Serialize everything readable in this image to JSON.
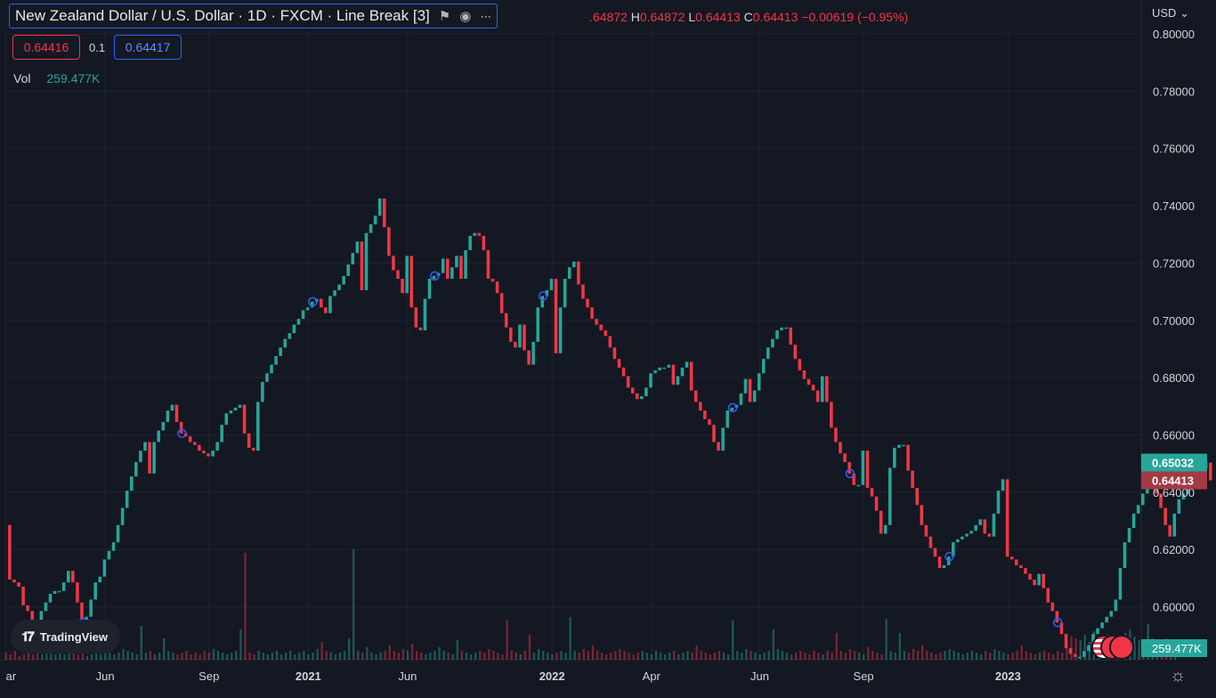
{
  "header": {
    "title": "New Zealand Dollar / U.S. Dollar · 1D · FXCM · Line Break [3]",
    "flag_icon": "flag-icon",
    "eye_icon": "eye-icon",
    "more_icon": "more-icon",
    "ohlc": {
      "o_value": ".64872",
      "h_key": "H",
      "h_value": "0.64872",
      "l_key": "L",
      "l_value": "0.64413",
      "c_key": "C",
      "c_value": "0.64413",
      "change": "−0.00619 (−0.95%)"
    },
    "sell_price": "0.64416",
    "spread": "0.1",
    "buy_price": "0.64417",
    "vol_label": "Vol",
    "vol_value": "259.477K",
    "currency": "USD"
  },
  "logo_text": "TradingView",
  "settings_icon": "gear-icon",
  "colors": {
    "up": "#26a69a",
    "down": "#f23645",
    "background": "#141823",
    "grid": "#1f2430"
  },
  "chart_data": {
    "type": "line_break",
    "y_ticks": [
      "0.80000",
      "0.78000",
      "0.76000",
      "0.74000",
      "0.72000",
      "0.70000",
      "0.68000",
      "0.66000",
      "0.64000",
      "0.62000",
      "0.60000"
    ],
    "ylim": [
      0.5815,
      0.8025
    ],
    "x_ticks": [
      {
        "label": "ar",
        "x": 0
      },
      {
        "label": "Jun",
        "x": 22
      },
      {
        "label": "Sep",
        "x": 45
      },
      {
        "label": "2021",
        "x": 67
      },
      {
        "label": "Jun",
        "x": 89
      },
      {
        "label": "2022",
        "x": 121
      },
      {
        "label": "Apr",
        "x": 143
      },
      {
        "label": "Jun",
        "x": 167
      },
      {
        "label": "Sep",
        "x": 190
      },
      {
        "label": "2023",
        "x": 222
      }
    ],
    "x_range": [
      0,
      252
    ],
    "price_labels": [
      {
        "value": "0.65032",
        "color": "#26a69a"
      },
      {
        "value": "0.64413",
        "color": "#a33a45"
      }
    ],
    "volume_label": "259.477K",
    "last_price": 0.64413,
    "prev_price": 0.65032,
    "closes": [
      0.6285,
      0.6095,
      0.6085,
      0.607,
      0.6005,
      0.5985,
      0.5945,
      0.5935,
      0.5985,
      0.6015,
      0.6045,
      0.6055,
      0.6055,
      0.6085,
      0.6125,
      0.6085,
      0.6015,
      0.5945,
      0.5965,
      0.6025,
      0.6085,
      0.6105,
      0.6165,
      0.6195,
      0.6225,
      0.6285,
      0.6345,
      0.6405,
      0.6455,
      0.6505,
      0.6545,
      0.6575,
      0.6465,
      0.6575,
      0.6615,
      0.6645,
      0.6685,
      0.6705,
      0.6645,
      0.6605,
      0.6595,
      0.6575,
      0.6565,
      0.6545,
      0.6535,
      0.6525,
      0.6545,
      0.6575,
      0.6635,
      0.6675,
      0.6685,
      0.6695,
      0.6705,
      0.6605,
      0.6555,
      0.6545,
      0.6715,
      0.6785,
      0.6815,
      0.6845,
      0.6875,
      0.6905,
      0.6935,
      0.6955,
      0.6985,
      0.7005,
      0.7035,
      0.7045,
      0.7065,
      0.7075,
      0.7045,
      0.7025,
      0.7085,
      0.7105,
      0.7125,
      0.7155,
      0.7195,
      0.7235,
      0.7275,
      0.7105,
      0.7305,
      0.7335,
      0.7365,
      0.7425,
      0.7325,
      0.7225,
      0.7175,
      0.7145,
      0.7095,
      0.7225,
      0.7045,
      0.6975,
      0.6965,
      0.7075,
      0.7145,
      0.7155,
      0.7165,
      0.7215,
      0.7145,
      0.7185,
      0.7225,
      0.7145,
      0.7245,
      0.7295,
      0.7305,
      0.7295,
      0.7245,
      0.7145,
      0.7135,
      0.7095,
      0.7025,
      0.6975,
      0.6925,
      0.6905,
      0.6985,
      0.6895,
      0.6845,
      0.6925,
      0.7045,
      0.7085,
      0.7105,
      0.7145,
      0.6885,
      0.7045,
      0.7145,
      0.7185,
      0.7205,
      0.7125,
      0.7075,
      0.7045,
      0.7005,
      0.6985,
      0.6965,
      0.6945,
      0.6905,
      0.6865,
      0.6835,
      0.6805,
      0.6765,
      0.6745,
      0.6725,
      0.6735,
      0.6765,
      0.6815,
      0.6825,
      0.6835,
      0.6835,
      0.6845,
      0.6775,
      0.6805,
      0.6835,
      0.6855,
      0.6755,
      0.6715,
      0.6685,
      0.6655,
      0.6635,
      0.6575,
      0.6545,
      0.6625,
      0.6685,
      0.6695,
      0.6705,
      0.6745,
      0.6795,
      0.6715,
      0.6755,
      0.6815,
      0.6865,
      0.6905,
      0.6935,
      0.6965,
      0.6975,
      0.6975,
      0.6915,
      0.6865,
      0.6825,
      0.6795,
      0.6775,
      0.6755,
      0.6715,
      0.6805,
      0.6715,
      0.6625,
      0.6575,
      0.6535,
      0.6505,
      0.6465,
      0.6425,
      0.6425,
      0.6545,
      0.6415,
      0.6385,
      0.6335,
      0.6255,
      0.6285,
      0.6485,
      0.6555,
      0.6565,
      0.6565,
      0.6475,
      0.6415,
      0.6355,
      0.6285,
      0.6245,
      0.6205,
      0.6175,
      0.6135,
      0.6145,
      0.6175,
      0.6225,
      0.6235,
      0.6245,
      0.6255,
      0.6265,
      0.6285,
      0.6305,
      0.6255,
      0.6245,
      0.6325,
      0.6405,
      0.6445,
      0.6175,
      0.6165,
      0.6145,
      0.6135,
      0.6115,
      0.6095,
      0.6075,
      0.6115,
      0.6065,
      0.6015,
      0.5985,
      0.5945,
      0.5905,
      0.5855,
      0.5835,
      0.5825,
      0.5825,
      0.5845,
      0.5865,
      0.5905,
      0.5925,
      0.5945,
      0.5965,
      0.5985,
      0.6025,
      0.6135,
      0.6225,
      0.6275,
      0.6325,
      0.6355,
      0.6395,
      0.6415,
      0.6465,
      0.6395,
      0.6345,
      0.6285,
      0.6245,
      0.6325,
      0.6375,
      0.6395,
      0.6425,
      0.6445,
      0.6465,
      0.6485,
      0.6503,
      0.6441
    ],
    "volumes": [
      0.04,
      0.03,
      0.05,
      0.02,
      0.03,
      0.04,
      0.03,
      0.22,
      0.03,
      0.04,
      0.05,
      0.03,
      0.04,
      0.03,
      0.05,
      0.04,
      0.03,
      0.04,
      0.02,
      0.03,
      0.04,
      0.03,
      0.05,
      0.04,
      0.03,
      0.04,
      0.06,
      0.05,
      0.04,
      0.03,
      0.19,
      0.04,
      0.05,
      0.03,
      0.04,
      0.12,
      0.05,
      0.04,
      0.03,
      0.04,
      0.05,
      0.03,
      0.04,
      0.03,
      0.05,
      0.04,
      0.06,
      0.05,
      0.04,
      0.03,
      0.04,
      0.05,
      0.17,
      0.6,
      0.04,
      0.03,
      0.05,
      0.04,
      0.03,
      0.04,
      0.05,
      0.03,
      0.04,
      0.05,
      0.03,
      0.04,
      0.05,
      0.03,
      0.04,
      0.06,
      0.1,
      0.05,
      0.04,
      0.03,
      0.04,
      0.05,
      0.12,
      0.62,
      0.05,
      0.04,
      0.07,
      0.04,
      0.03,
      0.04,
      0.05,
      0.08,
      0.05,
      0.04,
      0.06,
      0.05,
      0.09,
      0.05,
      0.04,
      0.03,
      0.04,
      0.05,
      0.07,
      0.05,
      0.04,
      0.03,
      0.11,
      0.05,
      0.04,
      0.03,
      0.04,
      0.05,
      0.04,
      0.06,
      0.05,
      0.04,
      0.03,
      0.22,
      0.05,
      0.04,
      0.03,
      0.05,
      0.14,
      0.04,
      0.06,
      0.05,
      0.04,
      0.03,
      0.04,
      0.05,
      0.04,
      0.24,
      0.05,
      0.04,
      0.06,
      0.05,
      0.08,
      0.05,
      0.04,
      0.03,
      0.04,
      0.05,
      0.06,
      0.05,
      0.04,
      0.03,
      0.04,
      0.05,
      0.04,
      0.03,
      0.05,
      0.04,
      0.03,
      0.04,
      0.05,
      0.03,
      0.04,
      0.05,
      0.04,
      0.08,
      0.05,
      0.04,
      0.03,
      0.04,
      0.05,
      0.04,
      0.03,
      0.22,
      0.05,
      0.04,
      0.06,
      0.05,
      0.04,
      0.03,
      0.04,
      0.05,
      0.17,
      0.06,
      0.05,
      0.04,
      0.03,
      0.04,
      0.05,
      0.04,
      0.03,
      0.05,
      0.04,
      0.03,
      0.05,
      0.04,
      0.15,
      0.05,
      0.04,
      0.06,
      0.05,
      0.04,
      0.03,
      0.07,
      0.05,
      0.04,
      0.03,
      0.23,
      0.05,
      0.04,
      0.15,
      0.05,
      0.04,
      0.06,
      0.05,
      0.08,
      0.05,
      0.04,
      0.03,
      0.04,
      0.05,
      0.06,
      0.05,
      0.04,
      0.03,
      0.04,
      0.05,
      0.04,
      0.03,
      0.05,
      0.04,
      0.06,
      0.05,
      0.04,
      0.03,
      0.04,
      0.05,
      0.08,
      0.05,
      0.04,
      0.03,
      0.04,
      0.05,
      0.04,
      0.03,
      0.05,
      0.04,
      0.1,
      0.13,
      0.12,
      0.11,
      0.14,
      0.1,
      0.16,
      0.09,
      0.12,
      0.14,
      0.11,
      0.09,
      0.12,
      0.15,
      0.17,
      0.13,
      0.11,
      0.1,
      0.2,
      0.12,
      0.1,
      0.11,
      0.12,
      0.1,
      0.08
    ],
    "circle_markers": [
      17,
      39,
      68,
      95,
      119,
      161,
      187,
      209,
      233
    ],
    "secondary_x_ticks": []
  }
}
